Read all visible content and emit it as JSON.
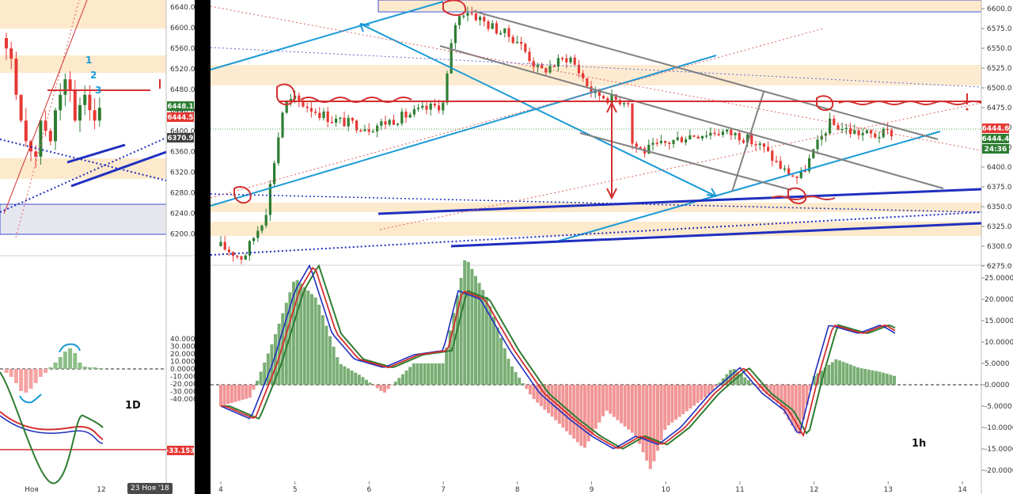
{
  "left_panel": {
    "timeframe_label": "1D",
    "date_tag": "23 Ноя '18",
    "x_ticks": [
      "Ноя",
      "12"
    ],
    "price_ticks": [
      "6640.0",
      "6600.0",
      "6560.0",
      "6520.0",
      "6480.0",
      "6440.0",
      "6400.0",
      "6360.0",
      "6320.0",
      "6280.0",
      "6240.0",
      "6200.0"
    ],
    "price_tags": [
      {
        "text": "6448.1",
        "color": "#2e7d32"
      },
      {
        "text": "6444.5",
        "color": "#e53935"
      },
      {
        "text": "6370.9",
        "color": "#424242"
      }
    ],
    "wave_labels": [
      "1",
      "2",
      "3"
    ],
    "osc_ticks": [
      "40.0000",
      "30.0000",
      "20.0000",
      "10.0000",
      "0.0000",
      "-10.0000",
      "-20.0000",
      "-30.0000",
      "-40.0000"
    ],
    "osc_tag": {
      "text": "-33.153",
      "color": "#e53935"
    }
  },
  "right_panel": {
    "timeframe_label": "1h",
    "x_ticks": [
      "4",
      "5",
      "6",
      "7",
      "8",
      "9",
      "10",
      "11",
      "12",
      "13",
      "14"
    ],
    "price_ticks": [
      "6600.0",
      "6575.0",
      "6550.0",
      "6525.0",
      "6500.0",
      "6475.0",
      "6450.0",
      "6425.0",
      "6400.0",
      "6375.0",
      "6350.0",
      "6325.0",
      "6300.0",
      "6275.0"
    ],
    "price_tags": [
      {
        "text": "6444.6",
        "color": "#e53935"
      },
      {
        "text": "6444.4",
        "color": "#2e7d32"
      },
      {
        "text": "24:36",
        "color": "#2e7d32"
      }
    ],
    "osc_ticks": [
      "25.0000",
      "20.0000",
      "15.0000",
      "10.0000",
      "5.0000",
      "0.0000",
      "-5.0000",
      "-10.0000",
      "-15.0000",
      "-20.0000"
    ]
  },
  "colors": {
    "up": "#2e7d32",
    "down": "#e53935",
    "zone": "#fde9cc",
    "trend_blue": "#1a9ad6",
    "trend_navy": "#1f2fbf",
    "channel_gray": "#808080"
  },
  "chart_data": [
    {
      "type": "line",
      "panel": "left",
      "timeframe": "1D",
      "x_ticks": [
        "Ноя",
        "12"
      ],
      "ylim": [
        6180,
        6650
      ],
      "last_prices": [
        6448.1,
        6444.5,
        6370.9
      ]
    },
    {
      "type": "line",
      "panel": "right",
      "timeframe": "1h",
      "x_ticks": [
        "4",
        "5",
        "6",
        "7",
        "8",
        "9",
        "10",
        "11",
        "12",
        "13",
        "14"
      ],
      "ylim": [
        6270,
        6605
      ],
      "series": [
        {
          "x": [
            4.0,
            4.3,
            4.6,
            4.85,
            5.0,
            5.5,
            6.0,
            6.5,
            7.0,
            7.15,
            7.3,
            7.6,
            8.0,
            8.3,
            8.7,
            9.0,
            9.3,
            9.5,
            9.55,
            9.7,
            10.0,
            10.3,
            10.7,
            11.0,
            11.3,
            11.6,
            11.8,
            12.0,
            12.2,
            12.5,
            12.8,
            13.1
          ],
          "values": [
            6300,
            6285,
            6340,
            6480,
            6485,
            6460,
            6450,
            6465,
            6480,
            6580,
            6600,
            6580,
            6560,
            6520,
            6540,
            6495,
            6485,
            6485,
            6430,
            6420,
            6430,
            6440,
            6445,
            6440,
            6425,
            6395,
            6385,
            6420,
            6455,
            6445,
            6440,
            6444.5
          ]
        }
      ],
      "last_prices": [
        6444.6,
        6444.4
      ]
    }
  ]
}
